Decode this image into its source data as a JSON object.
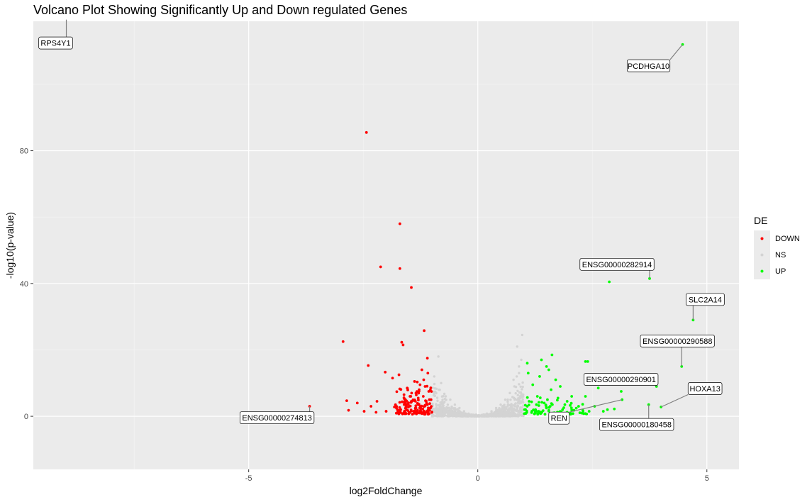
{
  "chart_data": {
    "type": "scatter",
    "title": "Volcano Plot Showing Significantly Up and Down regulated Genes",
    "xlabel": "log2FoldChange",
    "ylabel": "-log10(p-value)",
    "xlim": [
      -9.7,
      5.7
    ],
    "ylim": [
      -16,
      119
    ],
    "x_ticks": [
      -5,
      0,
      5
    ],
    "x_tick_labels": [
      "-5",
      "0",
      "5"
    ],
    "y_ticks": [
      0,
      40,
      80
    ],
    "y_tick_labels": [
      "0",
      "40",
      "80"
    ],
    "grid": true,
    "legend": {
      "title": "DE",
      "position": "right",
      "entries": [
        {
          "name": "DOWN",
          "color": "#ff0000"
        },
        {
          "name": "NS",
          "color": "#d3d3d3"
        },
        {
          "name": "UP",
          "color": "#00ff00"
        }
      ]
    },
    "series": [
      {
        "name": "DOWN",
        "color": "#ff0000",
        "points": [
          [
            -2.43,
            85.5
          ],
          [
            -1.7,
            58.0
          ],
          [
            -2.12,
            45.0
          ],
          [
            -1.7,
            44.5
          ],
          [
            -1.45,
            38.8
          ],
          [
            -1.17,
            25.8
          ],
          [
            -2.94,
            22.5
          ],
          [
            -1.66,
            22.3
          ],
          [
            -1.63,
            21.5
          ],
          [
            -1.1,
            17.5
          ],
          [
            -2.39,
            15.3
          ],
          [
            -1.22,
            14.0
          ],
          [
            -2.02,
            13.3
          ],
          [
            -1.72,
            12.5
          ],
          [
            -1.09,
            13.0
          ],
          [
            -1.86,
            11.5
          ],
          [
            -1.38,
            10.5
          ],
          [
            -1.54,
            8.5
          ],
          [
            -1.26,
            9.5
          ],
          [
            -1.15,
            9.0
          ],
          [
            -1.35,
            7.0
          ],
          [
            -1.61,
            6.5
          ],
          [
            -1.19,
            6.0
          ],
          [
            -1.07,
            7.5
          ],
          [
            -1.45,
            4.5
          ],
          [
            -1.3,
            5.5
          ],
          [
            -1.12,
            4.0
          ],
          [
            -1.55,
            3.5
          ],
          [
            -1.25,
            3.0
          ],
          [
            -1.08,
            2.5
          ],
          [
            -1.68,
            2.0
          ],
          [
            -1.4,
            1.5
          ],
          [
            -1.2,
            2.2
          ],
          [
            -1.05,
            1.8
          ],
          [
            -1.5,
            1.2
          ],
          [
            -1.82,
            2.8
          ],
          [
            -2.2,
            4.5
          ],
          [
            -2.33,
            3.0
          ],
          [
            -2.63,
            4.0
          ],
          [
            -2.0,
            1.5
          ],
          [
            -2.86,
            4.7
          ],
          [
            -2.82,
            1.8
          ],
          [
            -2.48,
            1.5
          ],
          [
            -2.22,
            1.2
          ],
          [
            -1.75,
            1.0
          ],
          [
            -3.67,
            3.0
          ],
          [
            -1.1,
            3.5
          ],
          [
            -1.36,
            2.5
          ],
          [
            -1.62,
            1.0
          ],
          [
            -1.15,
            1.0
          ],
          [
            -1.28,
            8.0
          ],
          [
            -1.02,
            5.0
          ],
          [
            -1.48,
            6.0
          ],
          [
            -1.18,
            11.0
          ],
          [
            -1.6,
            4.0
          ]
        ]
      },
      {
        "name": "UP",
        "color": "#00ff00",
        "points": [
          [
            4.47,
            112.0
          ],
          [
            3.75,
            41.5
          ],
          [
            2.87,
            40.5
          ],
          [
            4.7,
            29.0
          ],
          [
            4.45,
            15.0
          ],
          [
            3.9,
            9.0
          ],
          [
            3.73,
            3.5
          ],
          [
            4.0,
            2.8
          ],
          [
            1.62,
            18.5
          ],
          [
            1.39,
            17.0
          ],
          [
            1.08,
            16.0
          ],
          [
            1.5,
            15.0
          ],
          [
            2.35,
            16.5
          ],
          [
            2.4,
            16.5
          ],
          [
            1.7,
            11.0
          ],
          [
            1.1,
            13.0
          ],
          [
            1.35,
            12.0
          ],
          [
            1.55,
            14.0
          ],
          [
            1.8,
            9.0
          ],
          [
            1.2,
            9.5
          ],
          [
            1.6,
            8.0
          ],
          [
            2.63,
            8.5
          ],
          [
            3.13,
            7.5
          ],
          [
            3.15,
            5.0
          ],
          [
            1.3,
            6.0
          ],
          [
            1.75,
            5.5
          ],
          [
            2.05,
            6.0
          ],
          [
            2.35,
            6.0
          ],
          [
            1.45,
            4.0
          ],
          [
            1.9,
            3.5
          ],
          [
            2.2,
            3.0
          ],
          [
            2.55,
            3.0
          ],
          [
            1.12,
            4.5
          ],
          [
            1.28,
            3.5
          ],
          [
            1.5,
            2.5
          ],
          [
            1.85,
            2.0
          ],
          [
            2.1,
            1.8
          ],
          [
            2.43,
            1.5
          ],
          [
            2.83,
            2.0
          ],
          [
            1.02,
            2.0
          ],
          [
            1.18,
            1.5
          ],
          [
            1.4,
            1.2
          ],
          [
            1.65,
            1.0
          ],
          [
            2.02,
            1.0
          ],
          [
            2.74,
            1.5
          ],
          [
            1.08,
            3.0
          ],
          [
            1.26,
            2.0
          ],
          [
            2.98,
            2.2
          ],
          [
            1.52,
            5.0
          ],
          [
            1.95,
            4.5
          ]
        ]
      },
      {
        "name": "NS",
        "color": "#d3d3d3",
        "points": [
          [
            -0.86,
            18.0
          ],
          [
            -0.95,
            12.0
          ],
          [
            -0.85,
            8.0
          ],
          [
            -0.7,
            6.0
          ],
          [
            -0.6,
            5.0
          ],
          [
            -0.5,
            3.5
          ],
          [
            -0.4,
            2.5
          ],
          [
            -0.3,
            1.5
          ],
          [
            -0.2,
            0.8
          ],
          [
            -0.1,
            0.3
          ],
          [
            0.0,
            0.1
          ],
          [
            0.1,
            0.3
          ],
          [
            0.2,
            0.8
          ],
          [
            0.3,
            1.5
          ],
          [
            0.4,
            2.5
          ],
          [
            0.5,
            3.5
          ],
          [
            0.6,
            5.0
          ],
          [
            0.7,
            7.0
          ],
          [
            0.8,
            9.0
          ],
          [
            0.85,
            12.0
          ],
          [
            0.9,
            15.0
          ],
          [
            0.95,
            17.0
          ],
          [
            0.97,
            24.5
          ],
          [
            0.86,
            21.0
          ],
          [
            0.9,
            13.0
          ],
          [
            -0.75,
            4.0
          ],
          [
            -0.9,
            2.0
          ],
          [
            -0.65,
            1.5
          ],
          [
            -0.55,
            1.0
          ],
          [
            -0.35,
            0.6
          ],
          [
            0.35,
            0.5
          ],
          [
            0.55,
            1.2
          ],
          [
            0.75,
            2.0
          ],
          [
            0.95,
            1.5
          ],
          [
            0.65,
            3.0
          ],
          [
            -0.45,
            0.3
          ],
          [
            0.45,
            0.3
          ],
          [
            -0.8,
            10.0
          ],
          [
            0.78,
            11.0
          ],
          [
            0.92,
            6.0
          ]
        ]
      }
    ],
    "labels": [
      {
        "gene": "RPS4Y1",
        "x": -8.98,
        "y": 119.5
      },
      {
        "gene": "PCDHGA10",
        "x": 4.47,
        "y": 112.0
      },
      {
        "gene": "ENSG00000282914",
        "x": 3.75,
        "y": 41.5
      },
      {
        "gene": "SLC2A14",
        "x": 4.7,
        "y": 29.0
      },
      {
        "gene": "ENSG00000290588",
        "x": 4.45,
        "y": 15.0
      },
      {
        "gene": "ENSG00000290901",
        "x": 3.9,
        "y": 9.0
      },
      {
        "gene": "HOXA13",
        "x": 4.0,
        "y": 2.8
      },
      {
        "gene": "REN",
        "x": 3.15,
        "y": 5.0
      },
      {
        "gene": "ENSG00000180458",
        "x": 3.73,
        "y": 3.5
      },
      {
        "gene": "ENSG00000274813",
        "x": -3.67,
        "y": 3.0
      }
    ]
  }
}
